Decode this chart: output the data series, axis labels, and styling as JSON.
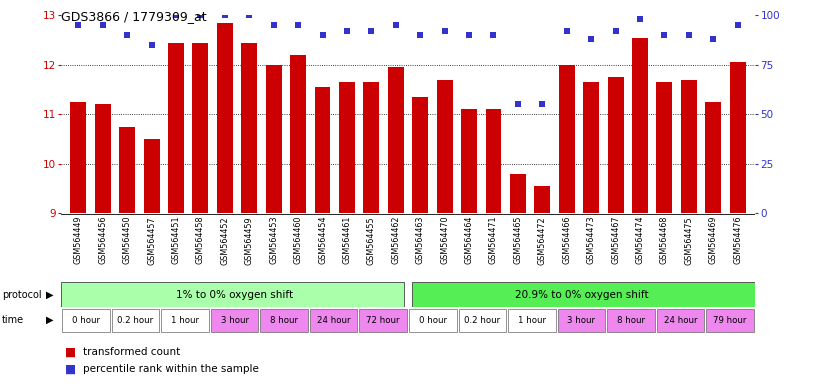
{
  "title": "GDS3866 / 1779309_at",
  "samples": [
    "GSM564449",
    "GSM564456",
    "GSM564450",
    "GSM564457",
    "GSM564451",
    "GSM564458",
    "GSM564452",
    "GSM564459",
    "GSM564453",
    "GSM564460",
    "GSM564454",
    "GSM564461",
    "GSM564455",
    "GSM564462",
    "GSM564463",
    "GSM564470",
    "GSM564464",
    "GSM564471",
    "GSM564465",
    "GSM564472",
    "GSM564466",
    "GSM564473",
    "GSM564467",
    "GSM564474",
    "GSM564468",
    "GSM564475",
    "GSM564469",
    "GSM564476"
  ],
  "bar_values": [
    11.25,
    11.2,
    10.75,
    10.5,
    12.45,
    12.45,
    12.85,
    12.45,
    12.0,
    12.2,
    11.55,
    11.65,
    11.65,
    11.95,
    11.35,
    11.7,
    11.1,
    11.1,
    9.8,
    9.55,
    12.0,
    11.65,
    11.75,
    12.55,
    11.65,
    11.7,
    11.25,
    12.05
  ],
  "percentile_values": [
    95,
    95,
    90,
    85,
    100,
    100,
    100,
    100,
    95,
    95,
    90,
    92,
    92,
    95,
    90,
    92,
    90,
    90,
    55,
    55,
    92,
    88,
    92,
    98,
    90,
    90,
    88,
    95
  ],
  "ylim_left": [
    9,
    13
  ],
  "ylim_right": [
    0,
    100
  ],
  "yticks_left": [
    9,
    10,
    11,
    12,
    13
  ],
  "yticks_right": [
    0,
    25,
    50,
    75,
    100
  ],
  "bar_color": "#cc0000",
  "dot_color": "#3333cc",
  "grid_color": "#000000",
  "protocol1_label": "1% to 0% oxygen shift",
  "protocol2_label": "20.9% to 0% oxygen shift",
  "protocol_color1": "#aaffaa",
  "protocol_color2": "#55ee55",
  "time_labels_1": [
    "0 hour",
    "0.2 hour",
    "1 hour",
    "3 hour",
    "8 hour",
    "24 hour",
    "72 hour"
  ],
  "time_labels_2": [
    "0 hour",
    "0.2 hour",
    "1 hour",
    "3 hour",
    "8 hour",
    "24 hour",
    "79 hour"
  ],
  "time_colors_1": [
    "#ffffff",
    "#ffffff",
    "#ffffff",
    "#ee88ee",
    "#ee88ee",
    "#ee88ee",
    "#ee88ee"
  ],
  "time_colors_2": [
    "#ffffff",
    "#ffffff",
    "#ffffff",
    "#ee88ee",
    "#ee88ee",
    "#ee88ee",
    "#ee88ee"
  ],
  "legend_bar_label": "transformed count",
  "legend_dot_label": "percentile rank within the sample",
  "background_color": "#ffffff",
  "title_fontsize": 9,
  "axis_color_left": "#cc0000",
  "axis_color_right": "#3333cc",
  "label_area_color": "#e0e0e0"
}
